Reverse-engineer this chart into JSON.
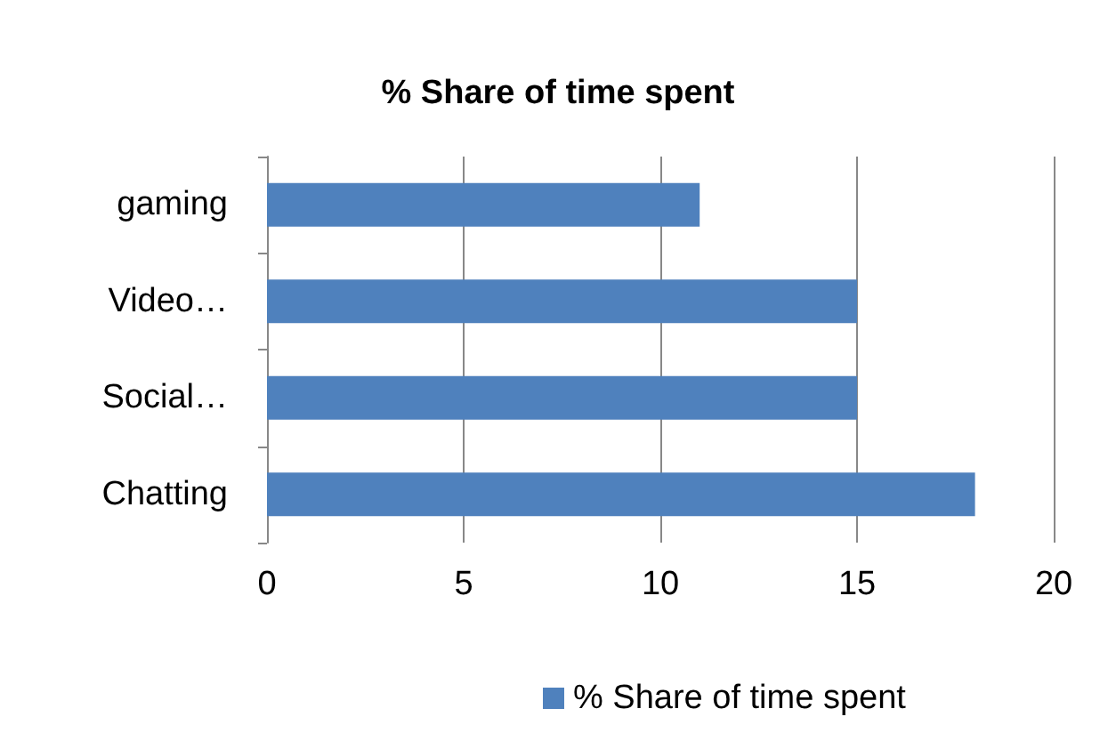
{
  "chart_data": {
    "type": "bar",
    "orientation": "horizontal",
    "title": "% Share of time spent",
    "categories": [
      "gaming",
      "Video…",
      "Social…",
      "Chatting"
    ],
    "series": [
      {
        "name": "% Share of time spent",
        "color": "#4f81bd",
        "values": [
          11,
          15,
          15,
          18
        ]
      }
    ],
    "xlim": [
      0,
      20
    ],
    "xticks": [
      0,
      5,
      10,
      15,
      20
    ],
    "grid": "x",
    "legend": "bottom"
  }
}
